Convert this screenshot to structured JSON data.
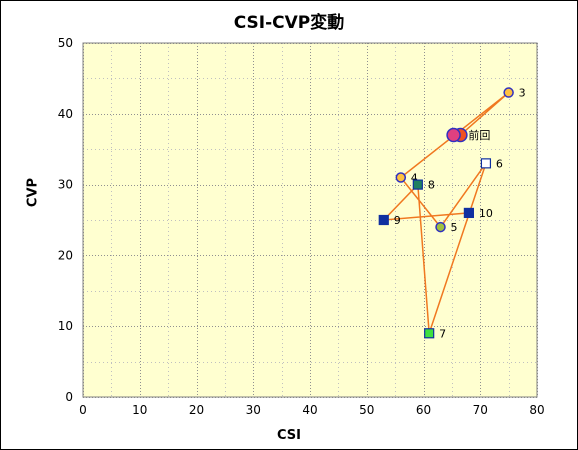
{
  "chart_data": {
    "type": "scatter",
    "title": "CSI-CVP変動",
    "xlabel": "CSI",
    "ylabel": "CVP",
    "xlim": [
      0,
      80
    ],
    "ylim": [
      0,
      50
    ],
    "xticks": [
      0,
      10,
      20,
      30,
      40,
      50,
      60,
      70,
      80
    ],
    "yticks": [
      0,
      10,
      20,
      30,
      40,
      50
    ],
    "grid": true,
    "path_color": "#f07820",
    "plot_bg": "#ffffd0",
    "points": [
      {
        "label": "前回",
        "x": 66.5,
        "y": 37,
        "marker": "circle",
        "fill": "#f05020",
        "stroke": "#3030c0"
      },
      {
        "label": "",
        "x": 65.3,
        "y": 37,
        "marker": "circle",
        "fill": "#e04080",
        "stroke": "#3030c0"
      },
      {
        "label": "3",
        "x": 75,
        "y": 43,
        "marker": "circle",
        "fill": "#ffc040",
        "stroke": "#3030c0"
      },
      {
        "label": "4",
        "x": 56,
        "y": 31,
        "marker": "circle",
        "fill": "#ffc040",
        "stroke": "#3030c0"
      },
      {
        "label": "5",
        "x": 63,
        "y": 24,
        "marker": "circle",
        "fill": "#a0c040",
        "stroke": "#3030c0"
      },
      {
        "label": "6",
        "x": 71,
        "y": 33,
        "marker": "square",
        "fill": "#ffffff",
        "stroke": "#1030a0"
      },
      {
        "label": "7",
        "x": 61,
        "y": 9,
        "marker": "square",
        "fill": "#40e040",
        "stroke": "#1030a0"
      },
      {
        "label": "8",
        "x": 59,
        "y": 30,
        "marker": "square",
        "fill": "#208060",
        "stroke": "#1030a0"
      },
      {
        "label": "9",
        "x": 53,
        "y": 25,
        "marker": "square",
        "fill": "#1030a0",
        "stroke": "#1030a0"
      },
      {
        "label": "10",
        "x": 68,
        "y": 26,
        "marker": "square",
        "fill": "#1030a0",
        "stroke": "#1030a0"
      }
    ],
    "path": [
      [
        66.5,
        37
      ],
      [
        75,
        43
      ],
      [
        56,
        31
      ],
      [
        63,
        24
      ],
      [
        71,
        33
      ],
      [
        61,
        9
      ],
      [
        59,
        30
      ],
      [
        53,
        25
      ],
      [
        68,
        26
      ]
    ]
  }
}
